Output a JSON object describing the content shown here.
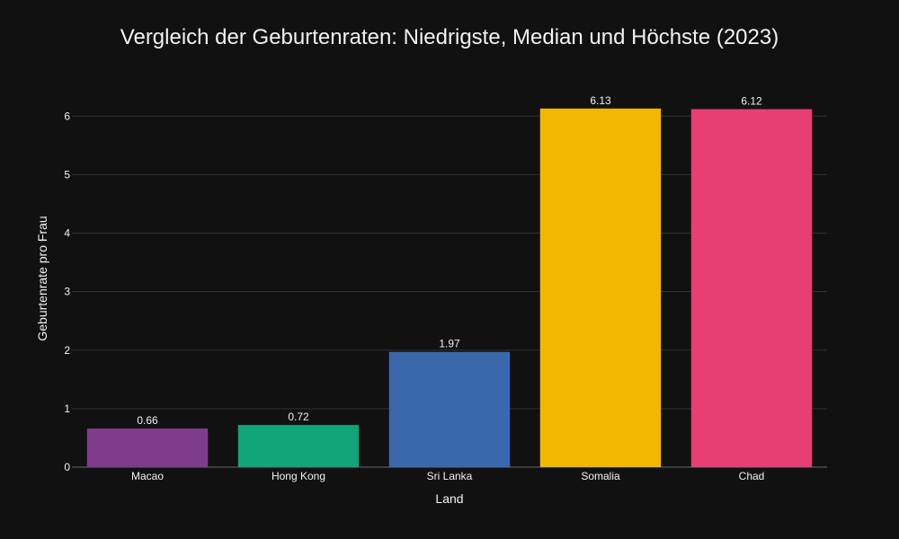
{
  "chart_data": {
    "type": "bar",
    "title": "Vergleich der Geburtenraten: Niedrigste, Median und Höchste (2023)",
    "xlabel": "Land",
    "ylabel": "Geburtenrate pro Frau",
    "categories": [
      "Macao",
      "Hong Kong",
      "Sri Lanka",
      "Somalia",
      "Chad"
    ],
    "values": [
      0.66,
      0.72,
      1.97,
      6.13,
      6.12
    ],
    "value_labels": [
      "0.66",
      "0.72",
      "1.97",
      "6.13",
      "6.12"
    ],
    "colors": [
      "#7f3c8d",
      "#11a579",
      "#3969ac",
      "#f2b701",
      "#e73f74"
    ],
    "ylim": [
      0,
      6.45
    ],
    "yticks": [
      0,
      1,
      2,
      3,
      4,
      5,
      6
    ],
    "grid": true,
    "legend": "none"
  }
}
